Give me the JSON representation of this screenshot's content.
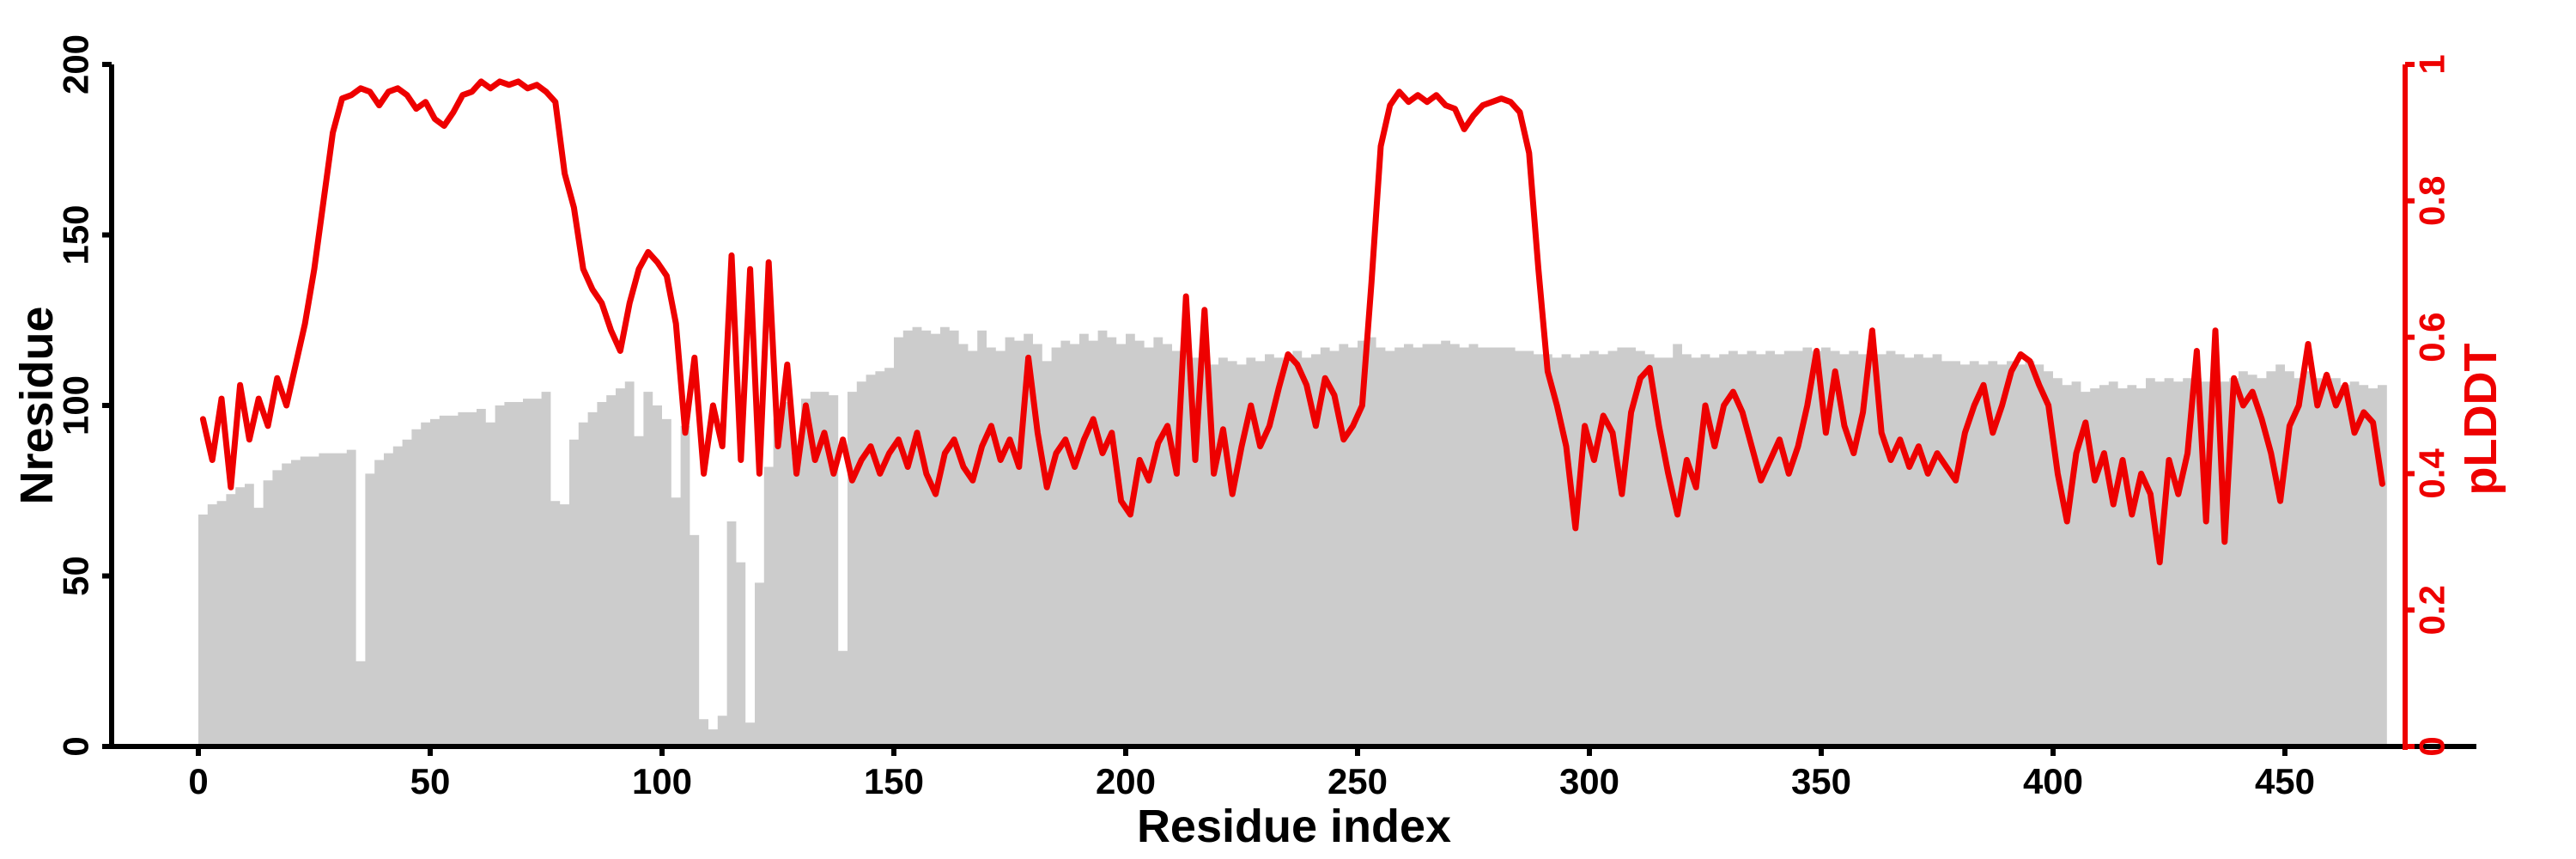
{
  "chart_data": {
    "type": "combo_bar_line",
    "title": "",
    "xlabel": "Residue index",
    "ylabel_left": "Nresidue",
    "ylabel_right": "pLDDT",
    "xlim": [
      0,
      472
    ],
    "ylim_left": [
      0,
      200
    ],
    "ylim_right": [
      0,
      1
    ],
    "x_ticks": [
      0,
      50,
      100,
      150,
      200,
      250,
      300,
      350,
      400,
      450
    ],
    "y_ticks_left": [
      0,
      50,
      100,
      150,
      200
    ],
    "y_ticks_right": [
      0,
      0.2,
      0.4,
      0.6,
      0.8,
      1
    ],
    "y_tick_right_labels": [
      "0",
      "0.2",
      "0.4",
      "0.6",
      "0.8",
      "1"
    ],
    "grid": false,
    "legend": "none",
    "x_start": 0,
    "x_step": 2,
    "series": [
      {
        "name": "Nresidue",
        "type": "bar",
        "axis": "left",
        "color": "#cccccc",
        "values": [
          68,
          71,
          72,
          74,
          76,
          77,
          70,
          78,
          81,
          83,
          84,
          85,
          85,
          86,
          86,
          86,
          87,
          25,
          80,
          84,
          86,
          88,
          90,
          93,
          95,
          96,
          97,
          97,
          98,
          98,
          99,
          95,
          100,
          101,
          101,
          102,
          102,
          104,
          72,
          71,
          90,
          95,
          98,
          101,
          103,
          105,
          107,
          91,
          104,
          100,
          96,
          73,
          94,
          62,
          8,
          5,
          9,
          66,
          54,
          7,
          48,
          82,
          96,
          101,
          85,
          102,
          104,
          104,
          103,
          28,
          104,
          107,
          109,
          110,
          111,
          120,
          122,
          123,
          122,
          121,
          123,
          122,
          118,
          116,
          122,
          117,
          116,
          120,
          119,
          121,
          118,
          113,
          117,
          119,
          118,
          121,
          119,
          122,
          120,
          118,
          121,
          119,
          117,
          120,
          118,
          116,
          119,
          114,
          116,
          112,
          114,
          113,
          112,
          114,
          113,
          115,
          114,
          113,
          116,
          114,
          115,
          117,
          116,
          118,
          117,
          119,
          120,
          117,
          116,
          117,
          118,
          117,
          118,
          118,
          119,
          118,
          117,
          118,
          117,
          117,
          117,
          117,
          116,
          116,
          115,
          115,
          114,
          115,
          114,
          115,
          116,
          115,
          116,
          117,
          117,
          116,
          115,
          114,
          114,
          118,
          115,
          114,
          115,
          114,
          115,
          116,
          115,
          116,
          115,
          116,
          115,
          116,
          116,
          117,
          116,
          117,
          116,
          115,
          116,
          115,
          114,
          115,
          116,
          115,
          114,
          115,
          114,
          115,
          113,
          113,
          112,
          113,
          112,
          113,
          112,
          113,
          112,
          113,
          112,
          110,
          108,
          106,
          107,
          104,
          105,
          106,
          107,
          105,
          106,
          105,
          108,
          107,
          108,
          107,
          108,
          108,
          107,
          108,
          107,
          108,
          110,
          109,
          108,
          110,
          112,
          110,
          108,
          110,
          108,
          107,
          108,
          106,
          107,
          106,
          105,
          106
        ]
      },
      {
        "name": "pLDDT",
        "type": "line",
        "axis": "right",
        "color": "#ee0000",
        "values": [
          0.48,
          0.42,
          0.51,
          0.38,
          0.53,
          0.45,
          0.51,
          0.47,
          0.54,
          0.5,
          0.56,
          0.62,
          0.7,
          0.8,
          0.9,
          0.95,
          0.955,
          0.965,
          0.96,
          0.94,
          0.96,
          0.965,
          0.955,
          0.935,
          0.945,
          0.92,
          0.91,
          0.93,
          0.955,
          0.96,
          0.975,
          0.965,
          0.975,
          0.97,
          0.975,
          0.965,
          0.97,
          0.96,
          0.945,
          0.84,
          0.79,
          0.7,
          0.67,
          0.65,
          0.61,
          0.58,
          0.65,
          0.7,
          0.725,
          0.71,
          0.69,
          0.62,
          0.46,
          0.57,
          0.4,
          0.5,
          0.44,
          0.72,
          0.42,
          0.7,
          0.4,
          0.71,
          0.44,
          0.56,
          0.4,
          0.5,
          0.42,
          0.46,
          0.4,
          0.45,
          0.39,
          0.42,
          0.44,
          0.4,
          0.43,
          0.45,
          0.41,
          0.46,
          0.4,
          0.37,
          0.43,
          0.45,
          0.41,
          0.39,
          0.44,
          0.47,
          0.42,
          0.45,
          0.41,
          0.57,
          0.46,
          0.38,
          0.43,
          0.45,
          0.41,
          0.45,
          0.48,
          0.43,
          0.46,
          0.36,
          0.34,
          0.42,
          0.39,
          0.445,
          0.47,
          0.4,
          0.66,
          0.42,
          0.64,
          0.4,
          0.465,
          0.37,
          0.44,
          0.5,
          0.44,
          0.47,
          0.525,
          0.575,
          0.56,
          0.53,
          0.47,
          0.54,
          0.515,
          0.45,
          0.47,
          0.5,
          0.68,
          0.88,
          0.94,
          0.96,
          0.945,
          0.955,
          0.945,
          0.955,
          0.94,
          0.935,
          0.905,
          0.925,
          0.94,
          0.945,
          0.95,
          0.945,
          0.93,
          0.87,
          0.7,
          0.55,
          0.5,
          0.44,
          0.32,
          0.47,
          0.42,
          0.485,
          0.46,
          0.37,
          0.49,
          0.54,
          0.555,
          0.47,
          0.4,
          0.34,
          0.42,
          0.38,
          0.5,
          0.44,
          0.5,
          0.52,
          0.49,
          0.44,
          0.39,
          0.42,
          0.45,
          0.4,
          0.44,
          0.5,
          0.58,
          0.46,
          0.55,
          0.47,
          0.43,
          0.49,
          0.61,
          0.46,
          0.42,
          0.45,
          0.41,
          0.44,
          0.4,
          0.43,
          0.41,
          0.39,
          0.46,
          0.5,
          0.53,
          0.46,
          0.5,
          0.55,
          0.575,
          0.565,
          0.53,
          0.5,
          0.4,
          0.33,
          0.43,
          0.475,
          0.39,
          0.43,
          0.355,
          0.42,
          0.34,
          0.4,
          0.37,
          0.27,
          0.42,
          0.37,
          0.43,
          0.58,
          0.33,
          0.61,
          0.3,
          0.54,
          0.5,
          0.52,
          0.48,
          0.43,
          0.36,
          0.47,
          0.5,
          0.59,
          0.5,
          0.545,
          0.5,
          0.53,
          0.46,
          0.49,
          0.475,
          0.385
        ]
      }
    ],
    "colors": {
      "bar": "#cccccc",
      "line": "#ee0000",
      "left_axis": "#000000",
      "right_axis": "#ee0000",
      "background": "#ffffff"
    }
  }
}
